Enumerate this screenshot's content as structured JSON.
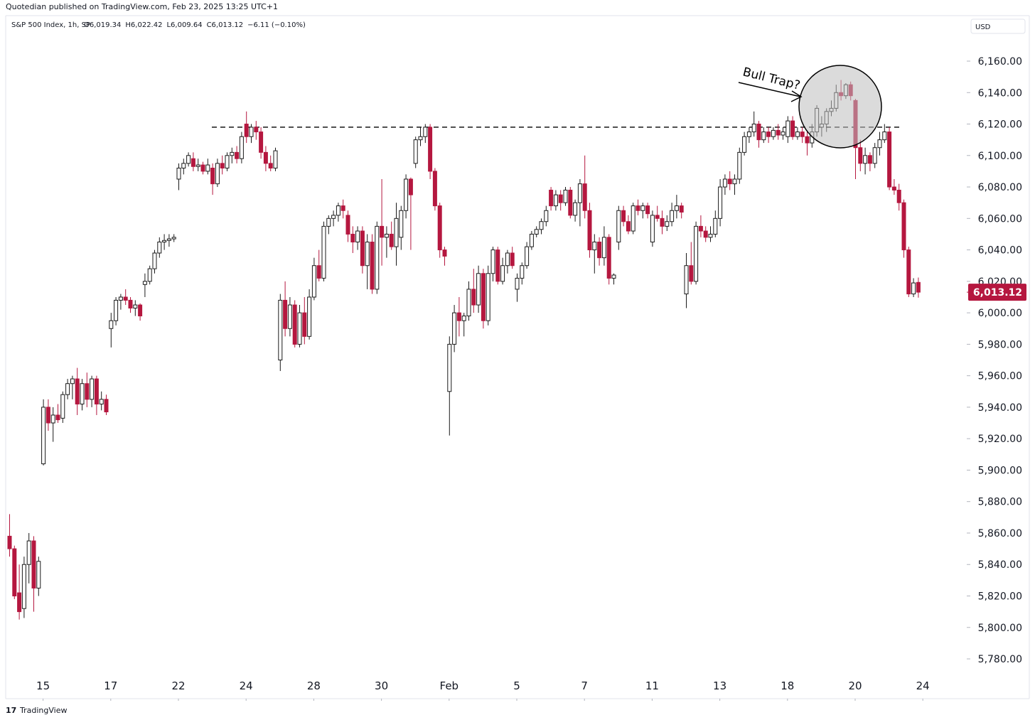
{
  "chart_data": {
    "type": "candlestick",
    "publisher_note": "Quotedian published on TradingView.com, Feb 23, 2025 13:25 UTC+1",
    "symbol": "S&P 500 Index, 1h, SP",
    "ohlc_header": [
      "O6,019.34",
      "H6,022.42",
      "L6,009.64",
      "C6,013.12",
      "−6.11 (−0.10%)"
    ],
    "currency": "USD",
    "footer": "TradingView",
    "annotation": "Bull Trap?",
    "up_color": "#ffffff",
    "down_color": "#b5173f",
    "outline_color": "#1a1a1a",
    "reference_line": 6118,
    "last_price": 6013.12,
    "last_price_label": "6,013.12",
    "ylim": [
      5770,
      6175
    ],
    "yticks": [
      {
        "value": 5780,
        "label": "5,780.00"
      },
      {
        "value": 5800,
        "label": "5,800.00"
      },
      {
        "value": 5820,
        "label": "5,820.00"
      },
      {
        "value": 5840,
        "label": "5,840.00"
      },
      {
        "value": 5860,
        "label": "5,860.00"
      },
      {
        "value": 5880,
        "label": "5,880.00"
      },
      {
        "value": 5900,
        "label": "5,900.00"
      },
      {
        "value": 5920,
        "label": "5,920.00"
      },
      {
        "value": 5940,
        "label": "5,940.00"
      },
      {
        "value": 5960,
        "label": "5,960.00"
      },
      {
        "value": 5980,
        "label": "5,980.00"
      },
      {
        "value": 6000,
        "label": "6,000.00"
      },
      {
        "value": 6020,
        "label": "6,020.00"
      },
      {
        "value": 6040,
        "label": "6,040.00"
      },
      {
        "value": 6060,
        "label": "6,060.00"
      },
      {
        "value": 6080,
        "label": "6,080.00"
      },
      {
        "value": 6100,
        "label": "6,100.00"
      },
      {
        "value": 6120,
        "label": "6,120.00"
      },
      {
        "value": 6140,
        "label": "6,140.00"
      },
      {
        "value": 6160,
        "label": "6,160.00"
      }
    ],
    "xticks": [
      {
        "value": 7,
        "label": "15"
      },
      {
        "value": 21,
        "label": "17"
      },
      {
        "value": 35,
        "label": "22"
      },
      {
        "value": 49,
        "label": "24"
      },
      {
        "value": 63,
        "label": "28"
      },
      {
        "value": 77,
        "label": "30"
      },
      {
        "value": 91,
        "label": "Feb"
      },
      {
        "value": 105,
        "label": "5"
      },
      {
        "value": 119,
        "label": "7"
      },
      {
        "value": 133,
        "label": "11"
      },
      {
        "value": 147,
        "label": "13"
      },
      {
        "value": 161,
        "label": "18"
      },
      {
        "value": 175,
        "label": "20"
      },
      {
        "value": 189,
        "label": "24"
      }
    ],
    "xlim": [
      0,
      198
    ],
    "candles": [
      [
        5858,
        5872,
        5845,
        5850
      ],
      [
        5850,
        5852,
        5818,
        5820
      ],
      [
        5822,
        5840,
        5805,
        5810
      ],
      [
        5812,
        5845,
        5806,
        5840
      ],
      [
        5840,
        5860,
        5828,
        5855
      ],
      [
        5855,
        5858,
        5810,
        5825
      ],
      [
        5825,
        5845,
        5820,
        5842
      ],
      [
        5904,
        5945,
        5903,
        5940
      ],
      [
        5940,
        5945,
        5925,
        5930
      ],
      [
        5930,
        5940,
        5918,
        5935
      ],
      [
        5935,
        5942,
        5930,
        5932
      ],
      [
        5933,
        5950,
        5930,
        5948
      ],
      [
        5948,
        5958,
        5945,
        5955
      ],
      [
        5955,
        5960,
        5945,
        5958
      ],
      [
        5958,
        5965,
        5935,
        5942
      ],
      [
        5942,
        5958,
        5938,
        5955
      ],
      [
        5955,
        5962,
        5940,
        5945
      ],
      [
        5945,
        5960,
        5940,
        5958
      ],
      [
        5958,
        5960,
        5935,
        5942
      ],
      [
        5942,
        5950,
        5938,
        5945
      ],
      [
        5945,
        5948,
        5935,
        5937
      ],
      [
        5990,
        6000,
        5978,
        5995
      ],
      [
        5995,
        6010,
        5992,
        6008
      ],
      [
        6008,
        6012,
        6002,
        6010
      ],
      [
        6010,
        6015,
        6005,
        6008
      ],
      [
        6008,
        6010,
        6000,
        6003
      ],
      [
        6003,
        6008,
        5998,
        6005
      ],
      [
        6005,
        6006,
        5995,
        5998
      ],
      [
        6018,
        6025,
        6010,
        6020
      ],
      [
        6020,
        6030,
        6018,
        6028
      ],
      [
        6028,
        6040,
        6025,
        6038
      ],
      [
        6038,
        6048,
        6035,
        6045
      ],
      [
        6045,
        6050,
        6040,
        6046
      ],
      [
        6046,
        6050,
        6042,
        6047
      ],
      [
        6047,
        6050,
        6045,
        6048
      ],
      [
        6085,
        6095,
        6078,
        6092
      ],
      [
        6092,
        6098,
        6088,
        6095
      ],
      [
        6095,
        6102,
        6093,
        6100
      ],
      [
        6098,
        6102,
        6090,
        6093
      ],
      [
        6093,
        6098,
        6090,
        6094
      ],
      [
        6094,
        6096,
        6088,
        6090
      ],
      [
        6090,
        6098,
        6088,
        6094
      ],
      [
        6092,
        6095,
        6075,
        6082
      ],
      [
        6082,
        6098,
        6080,
        6095
      ],
      [
        6095,
        6100,
        6088,
        6092
      ],
      [
        6092,
        6102,
        6090,
        6100
      ],
      [
        6100,
        6105,
        6095,
        6102
      ],
      [
        6102,
        6106,
        6095,
        6098
      ],
      [
        6098,
        6115,
        6095,
        6112
      ],
      [
        6120,
        6128,
        6108,
        6112
      ],
      [
        6112,
        6120,
        6108,
        6118
      ],
      [
        6118,
        6122,
        6110,
        6115
      ],
      [
        6115,
        6118,
        6098,
        6102
      ],
      [
        6102,
        6106,
        6090,
        6095
      ],
      [
        6095,
        6100,
        6090,
        6092
      ],
      [
        6092,
        6105,
        6090,
        6103
      ],
      [
        5970,
        6012,
        5963,
        6008
      ],
      [
        6008,
        6020,
        5985,
        5990
      ],
      [
        5990,
        6010,
        5985,
        6005
      ],
      [
        6005,
        6008,
        5978,
        5980
      ],
      [
        5980,
        6005,
        5978,
        6000
      ],
      [
        6000,
        6010,
        5980,
        5985
      ],
      [
        5985,
        6015,
        5983,
        6010
      ],
      [
        6010,
        6035,
        6008,
        6030
      ],
      [
        6030,
        6040,
        6020,
        6022
      ],
      [
        6022,
        6058,
        6020,
        6055
      ],
      [
        6055,
        6062,
        6050,
        6060
      ],
      [
        6060,
        6065,
        6055,
        6062
      ],
      [
        6062,
        6070,
        6058,
        6068
      ],
      [
        6068,
        6072,
        6060,
        6065
      ],
      [
        6062,
        6065,
        6045,
        6050
      ],
      [
        6050,
        6055,
        6038,
        6045
      ],
      [
        6045,
        6055,
        6040,
        6052
      ],
      [
        6052,
        6055,
        6025,
        6030
      ],
      [
        6030,
        6050,
        6015,
        6045
      ],
      [
        6045,
        6050,
        6012,
        6015
      ],
      [
        6015,
        6058,
        6012,
        6055
      ],
      [
        6055,
        6085,
        6030,
        6048
      ],
      [
        6048,
        6055,
        6035,
        6050
      ],
      [
        6050,
        6058,
        6040,
        6042
      ],
      [
        6042,
        6070,
        6030,
        6060
      ],
      [
        6048,
        6068,
        6040,
        6065
      ],
      [
        6065,
        6088,
        6060,
        6085
      ],
      [
        6085,
        6086,
        6040,
        6075
      ],
      [
        6095,
        6112,
        6092,
        6110
      ],
      [
        6110,
        6118,
        6106,
        6112
      ],
      [
        6112,
        6120,
        6108,
        6118
      ],
      [
        6118,
        6120,
        6085,
        6090
      ],
      [
        6090,
        6092,
        6065,
        6068
      ],
      [
        6068,
        6070,
        6035,
        6040
      ],
      [
        6040,
        6042,
        6030,
        6036
      ],
      [
        5950,
        5985,
        5922,
        5980
      ],
      [
        5980,
        6005,
        5975,
        6000
      ],
      [
        6000,
        6010,
        5985,
        5995
      ],
      [
        5995,
        6000,
        5985,
        5998
      ],
      [
        5998,
        6020,
        5995,
        6015
      ],
      [
        6015,
        6028,
        6000,
        6005
      ],
      [
        6005,
        6030,
        6000,
        6025
      ],
      [
        6025,
        6028,
        5990,
        5995
      ],
      [
        5995,
        6030,
        5992,
        6025
      ],
      [
        6025,
        6042,
        6020,
        6040
      ],
      [
        6040,
        6042,
        6018,
        6020
      ],
      [
        6020,
        6035,
        6018,
        6030
      ],
      [
        6030,
        6040,
        6025,
        6038
      ],
      [
        6038,
        6042,
        6028,
        6030
      ],
      [
        6015,
        6025,
        6007,
        6022
      ],
      [
        6022,
        6032,
        6018,
        6030
      ],
      [
        6030,
        6045,
        6028,
        6042
      ],
      [
        6042,
        6052,
        6040,
        6050
      ],
      [
        6050,
        6055,
        6048,
        6053
      ],
      [
        6053,
        6060,
        6050,
        6058
      ],
      [
        6058,
        6068,
        6055,
        6065
      ],
      [
        6078,
        6080,
        6065,
        6068
      ],
      [
        6068,
        6078,
        6065,
        6075
      ],
      [
        6075,
        6078,
        6065,
        6070
      ],
      [
        6070,
        6080,
        6068,
        6078
      ],
      [
        6078,
        6080,
        6060,
        6062
      ],
      [
        6062,
        6072,
        6058,
        6070
      ],
      [
        6070,
        6085,
        6055,
        6082
      ],
      [
        6082,
        6100,
        6060,
        6065
      ],
      [
        6065,
        6070,
        6035,
        6040
      ],
      [
        6040,
        6050,
        6025,
        6045
      ],
      [
        6045,
        6048,
        6030,
        6035
      ],
      [
        6035,
        6055,
        6030,
        6048
      ],
      [
        6048,
        6050,
        6018,
        6022
      ],
      [
        6022,
        6025,
        6018,
        6024
      ],
      [
        6045,
        6068,
        6040,
        6065
      ],
      [
        6065,
        6068,
        6055,
        6058
      ],
      [
        6058,
        6062,
        6050,
        6052
      ],
      [
        6052,
        6070,
        6050,
        6068
      ],
      [
        6068,
        6072,
        6062,
        6065
      ],
      [
        6065,
        6070,
        6060,
        6068
      ],
      [
        6068,
        6070,
        6060,
        6063
      ],
      [
        6045,
        6065,
        6042,
        6062
      ],
      [
        6062,
        6068,
        6058,
        6060
      ],
      [
        6060,
        6065,
        6050,
        6055
      ],
      [
        6055,
        6062,
        6052,
        6058
      ],
      [
        6058,
        6070,
        6055,
        6065
      ],
      [
        6065,
        6075,
        6060,
        6068
      ],
      [
        6068,
        6070,
        6060,
        6064
      ],
      [
        6012,
        6038,
        6003,
        6030
      ],
      [
        6030,
        6045,
        6018,
        6020
      ],
      [
        6020,
        6058,
        6018,
        6055
      ],
      [
        6055,
        6062,
        6048,
        6052
      ],
      [
        6052,
        6055,
        6045,
        6048
      ],
      [
        6048,
        6055,
        6045,
        6050
      ],
      [
        6050,
        6065,
        6048,
        6060
      ],
      [
        6060,
        6085,
        6055,
        6080
      ],
      [
        6080,
        6088,
        6075,
        6085
      ],
      [
        6085,
        6090,
        6078,
        6082
      ],
      [
        6082,
        6088,
        6075,
        6085
      ],
      [
        6085,
        6105,
        6082,
        6102
      ],
      [
        6102,
        6115,
        6100,
        6112
      ],
      [
        6112,
        6118,
        6108,
        6115
      ],
      [
        6115,
        6128,
        6112,
        6120
      ],
      [
        6120,
        6122,
        6105,
        6110
      ],
      [
        6110,
        6118,
        6108,
        6115
      ],
      [
        6115,
        6118,
        6108,
        6112
      ],
      [
        6112,
        6118,
        6110,
        6116
      ],
      [
        6116,
        6120,
        6110,
        6113
      ],
      [
        6113,
        6118,
        6110,
        6115
      ],
      [
        6112,
        6125,
        6108,
        6122
      ],
      [
        6122,
        6125,
        6110,
        6112
      ],
      [
        6112,
        6118,
        6110,
        6115
      ],
      [
        6115,
        6118,
        6108,
        6112
      ],
      [
        6112,
        6115,
        6100,
        6108
      ],
      [
        6108,
        6120,
        6105,
        6115
      ],
      [
        6115,
        6132,
        6112,
        6130
      ],
      [
        6118,
        6125,
        6112,
        6120
      ],
      [
        6120,
        6130,
        6115,
        6128
      ],
      [
        6128,
        6135,
        6125,
        6130
      ],
      [
        6130,
        6145,
        6128,
        6140
      ],
      [
        6140,
        6148,
        6135,
        6138
      ],
      [
        6138,
        6146,
        6136,
        6145
      ],
      [
        6145,
        6147,
        6135,
        6138
      ],
      [
        6135,
        6136,
        6085,
        6105
      ],
      [
        6105,
        6110,
        6090,
        6095
      ],
      [
        6095,
        6105,
        6088,
        6100
      ],
      [
        6100,
        6102,
        6090,
        6095
      ],
      [
        6095,
        6108,
        6092,
        6105
      ],
      [
        6105,
        6115,
        6100,
        6110
      ],
      [
        6110,
        6120,
        6108,
        6115
      ],
      [
        6115,
        6118,
        6078,
        6080
      ],
      [
        6080,
        6085,
        6075,
        6078
      ],
      [
        6078,
        6082,
        6065,
        6070
      ],
      [
        6070,
        6072,
        6035,
        6040
      ],
      [
        6040,
        6042,
        6010,
        6012
      ],
      [
        6012,
        6022,
        6010,
        6019
      ],
      [
        6019.34,
        6022.42,
        6009.64,
        6013.12
      ]
    ]
  }
}
